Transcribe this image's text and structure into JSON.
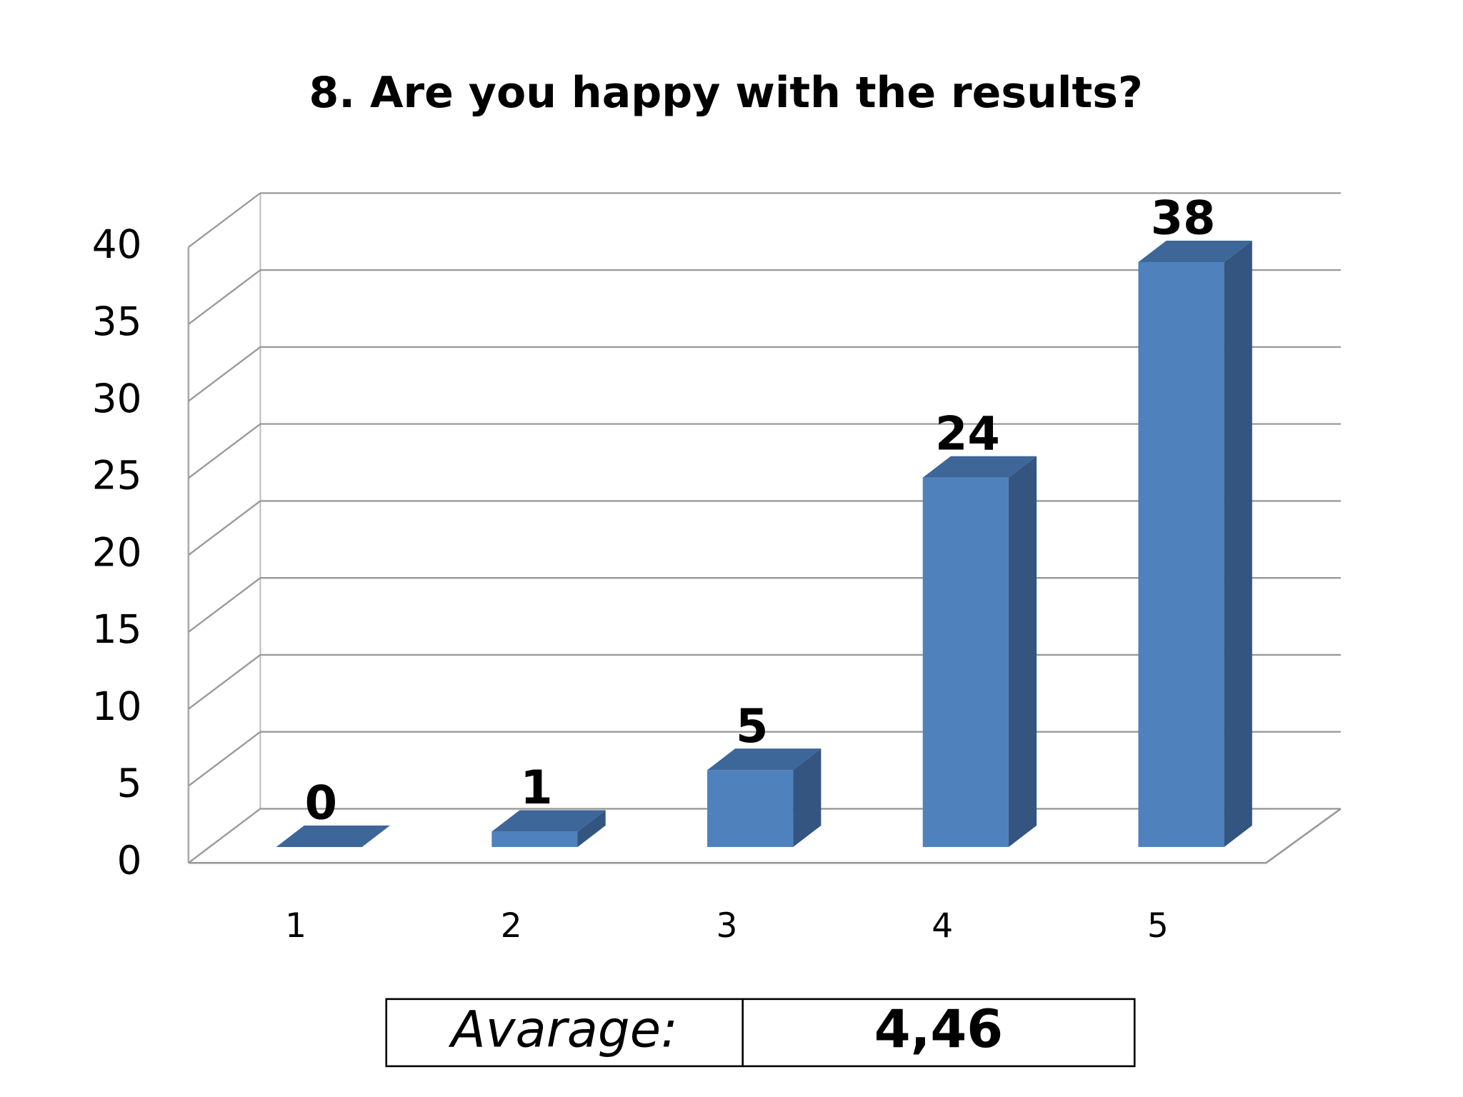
{
  "chart_data": {
    "type": "bar3d",
    "title": "8. Are you happy with the results?",
    "categories": [
      "1",
      "2",
      "3",
      "4",
      "5"
    ],
    "values": [
      0,
      1,
      5,
      24,
      38
    ],
    "color": "#4f81bd",
    "side_color": "#345580",
    "top_color": "#3d6699",
    "ylim": [
      0,
      40
    ],
    "yticks": [
      0,
      5,
      10,
      15,
      20,
      25,
      30,
      35,
      40
    ],
    "grid": true
  },
  "summary": {
    "label": "Avarage:",
    "value": "4,46",
    "value_color": "#1e8a1e"
  }
}
